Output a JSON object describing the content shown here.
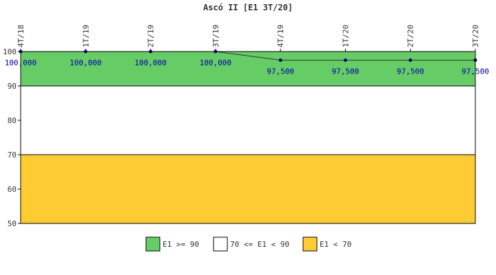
{
  "chart_data": {
    "type": "line",
    "title": "Ascó II [E1 3T/20]",
    "categories": [
      "4T/18",
      "1T/19",
      "2T/19",
      "3T/19",
      "4T/19",
      "1T/20",
      "2T/20",
      "3T/20"
    ],
    "series": [
      {
        "values": [
          100.0,
          100.0,
          100.0,
          100.0,
          97.5,
          97.5,
          97.5,
          97.5
        ],
        "labels": [
          "100,000",
          "100,000",
          "100,000",
          "100,000",
          "97,500",
          "97,500",
          "97,500",
          "97,500"
        ],
        "color": "#000080"
      }
    ],
    "ylim": [
      50,
      100
    ],
    "yticks": [
      "50",
      "60",
      "70",
      "80",
      "90",
      "100"
    ],
    "bands": [
      {
        "from": 90,
        "to": 100,
        "color": "#66cc66",
        "label": "E1 >= 90"
      },
      {
        "from": 70,
        "to": 90,
        "color": "#ffffff",
        "label": "70 <= E1 < 90"
      },
      {
        "from": 50,
        "to": 70,
        "color": "#ffcc33",
        "label": "E1 < 70"
      }
    ],
    "legend_position": "bottom"
  }
}
